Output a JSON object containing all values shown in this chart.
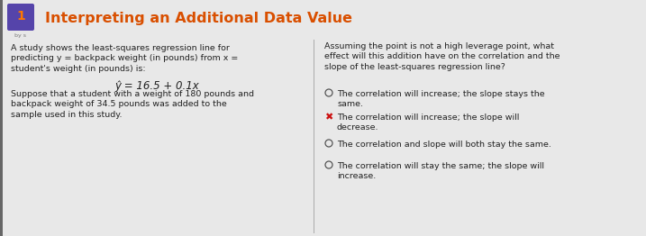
{
  "title": "Interpreting an Additional Data Value",
  "title_color": "#d94f00",
  "header_bg": "#e8e8e8",
  "body_bg": "#d8d8d8",
  "content_bg": "#e8e8e8",
  "icon_bg": "#5544aa",
  "icon_text": "1",
  "icon_text_color": "#ff7700",
  "byline": "by s",
  "left_col": {
    "paragraph1": "A study shows the least-squares regression line for\npredicting y = backpack weight (in pounds) from x =\nstudent's weight (in pounds) is:",
    "equation": "ŷ = 16.5 + 0.1x",
    "paragraph2": "Suppose that a student with a weight of 180 pounds and\nbackpack weight of 34.5 pounds was added to the\nsample used in this study."
  },
  "right_col": {
    "question": "Assuming the point is not a high leverage point, what\neffect will this addition have on the correlation and the\nslope of the least-squares regression line?",
    "options": [
      {
        "correct": false,
        "text": "The correlation will increase; the slope stays the\nsame."
      },
      {
        "correct": true,
        "text": "The correlation will increase; the slope will\ndecrease."
      },
      {
        "correct": false,
        "text": "The correlation and slope will both stay the same."
      },
      {
        "correct": false,
        "text": "The correlation will stay the same; the slope will\nincrease."
      }
    ]
  },
  "font_size_title": 11.5,
  "font_size_body": 6.8,
  "font_size_equation": 8.5,
  "text_color": "#222222",
  "divider_color": "#aaaaaa"
}
